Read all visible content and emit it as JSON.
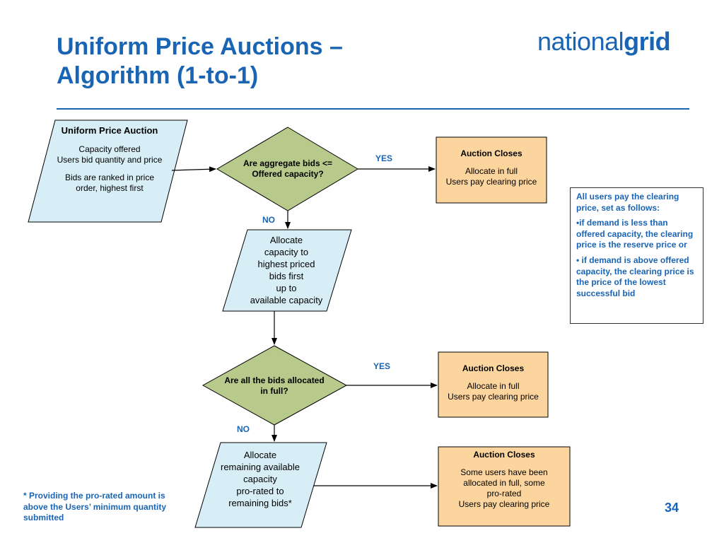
{
  "slide": {
    "title_line1": "Uniform Price Auctions –",
    "title_line2": "Algorithm (1-to-1)",
    "logo_regular": "national",
    "logo_bold": "grid",
    "page_number": "34"
  },
  "colors": {
    "accent": "#1a64b4",
    "input_fill": "#d7eef7",
    "decision_fill": "#b7c98b",
    "outcome_fill": "#fcd59e"
  },
  "flow": {
    "start": {
      "title": "Uniform Price Auction",
      "line1": "Capacity offered",
      "line2": "Users bid quantity and price",
      "line3": "Bids are ranked in price",
      "line4": "order, highest first"
    },
    "decision1": {
      "line1": "Are aggregate bids <=",
      "line2": "Offered capacity?"
    },
    "yes1": "YES",
    "outcome1": {
      "title": "Auction Closes",
      "line1": "Allocate in full",
      "line2": "Users pay clearing price"
    },
    "no1": "NO",
    "allocate1": {
      "line1": "Allocate",
      "line2": "capacity to",
      "line3": "highest priced",
      "line4": "bids first",
      "line5": "up to",
      "line6": "available capacity"
    },
    "decision2": {
      "line1": "Are all the bids allocated",
      "line2": "in full?"
    },
    "yes2": "YES",
    "outcome2": {
      "title": "Auction Closes",
      "line1": "Allocate in full",
      "line2": "Users pay clearing price"
    },
    "no2": "NO",
    "allocate2": {
      "line1": "Allocate",
      "line2": "remaining available",
      "line3": "capacity",
      "line4": "pro-rated  to",
      "line5": "remaining bids*"
    },
    "outcome3": {
      "title": "Auction Closes",
      "line1": "Some users have been",
      "line2": "allocated in full, some",
      "line3": "pro-rated",
      "line4": "Users pay clearing price"
    }
  },
  "note": {
    "p1": "All users pay the clearing price, set as follows:",
    "p2": "•if demand is less than offered capacity, the clearing price is the reserve price or",
    "p3": "• if demand is above offered capacity, the clearing price is the price of the lowest successful bid"
  },
  "footnote": "* Providing the pro-rated amount is above the Users’ minimum quantity submitted"
}
